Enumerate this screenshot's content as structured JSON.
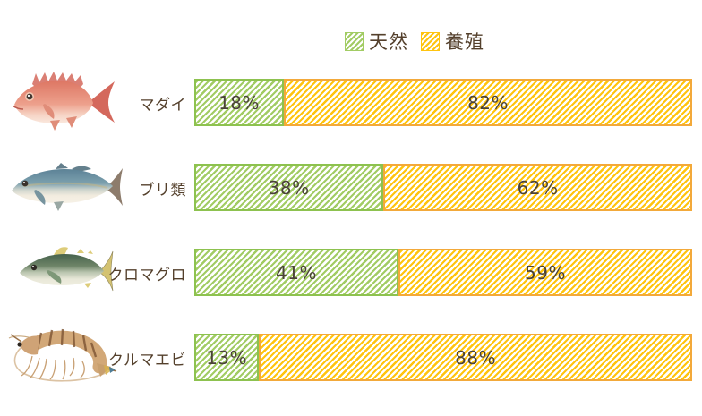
{
  "legend": {
    "natural_label": "天然",
    "farmed_label": "養殖"
  },
  "colors": {
    "natural_stripe": "#a2cc64",
    "natural_border": "#8dc24f",
    "farmed_stripe": "#ffc40f",
    "farmed_border": "#f3a93a",
    "label_text": "#54402c",
    "percent_text": "#4a4238",
    "background": "#ffffff"
  },
  "chart_data": {
    "type": "bar",
    "orientation": "horizontal-stacked",
    "unit": "percent",
    "title": "",
    "categories": [
      "マダイ",
      "ブリ類",
      "クロマグロ",
      "クルマエビ"
    ],
    "series": [
      {
        "name": "天然",
        "values": [
          18,
          38,
          41,
          13
        ]
      },
      {
        "name": "養殖",
        "values": [
          82,
          62,
          59,
          88
        ]
      }
    ],
    "legend_position": "top",
    "value_labels": "inside-segments",
    "row_icons": [
      "red-sea-bream-illustration",
      "yellowtail-illustration",
      "bluefin-tuna-illustration",
      "kuruma-prawn-illustration"
    ],
    "xlim": [
      0,
      100
    ],
    "grid": false
  },
  "rows": [
    {
      "label": "マダイ",
      "natural_pct": 18,
      "natural_label": "18%",
      "farmed_label": "82%"
    },
    {
      "label": "ブリ類",
      "natural_pct": 38,
      "natural_label": "38%",
      "farmed_label": "62%"
    },
    {
      "label": "クロマグロ",
      "natural_pct": 41,
      "natural_label": "41%",
      "farmed_label": "59%"
    },
    {
      "label": "クルマエビ",
      "natural_pct": 13,
      "natural_label": "13%",
      "farmed_label": "88%"
    }
  ]
}
